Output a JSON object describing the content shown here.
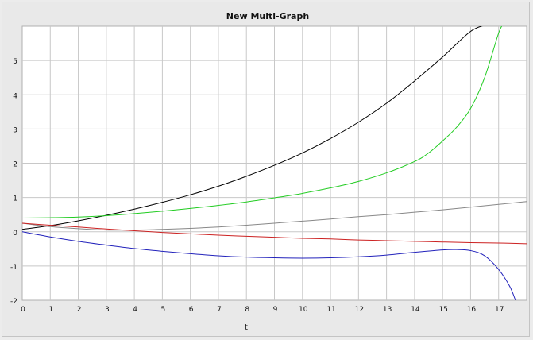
{
  "chart_data": {
    "type": "line",
    "title": "New Multi-Graph",
    "xlabel": "t",
    "ylabel": "",
    "xlim": [
      0,
      18
    ],
    "ylim": [
      -2,
      6
    ],
    "xticks": [
      "0",
      "1",
      "2",
      "3",
      "4",
      "5",
      "6",
      "7",
      "8",
      "9",
      "10",
      "11",
      "12",
      "13",
      "14",
      "15",
      "16",
      "17"
    ],
    "yticks": [
      "-2",
      "-1",
      "0",
      "1",
      "2",
      "3",
      "4",
      "5"
    ],
    "grid": true,
    "legend": "none",
    "colors": {
      "plot_bg": "#ffffff",
      "grid": "#c8c8c8",
      "panel_bg": "#e9e9e9"
    },
    "series": [
      {
        "color": "#000000",
        "x": [
          0,
          1,
          2,
          3,
          4,
          5,
          6,
          7,
          8,
          9,
          10,
          11,
          12,
          13,
          14,
          15,
          16,
          16.6
        ],
        "y": [
          0.07,
          0.18,
          0.32,
          0.48,
          0.66,
          0.86,
          1.08,
          1.33,
          1.62,
          1.94,
          2.3,
          2.72,
          3.2,
          3.75,
          4.4,
          5.1,
          5.85,
          6.05
        ]
      },
      {
        "color": "#22cc22",
        "x": [
          0,
          1,
          2,
          3,
          4,
          5,
          6,
          7,
          8,
          9,
          10,
          11,
          12,
          13,
          14,
          14.5,
          15,
          15.5,
          16,
          16.5,
          17,
          17.2
        ],
        "y": [
          0.4,
          0.41,
          0.43,
          0.47,
          0.53,
          0.6,
          0.68,
          0.77,
          0.87,
          0.99,
          1.12,
          1.28,
          1.47,
          1.72,
          2.05,
          2.3,
          2.65,
          3.05,
          3.6,
          4.5,
          5.8,
          6.1
        ]
      },
      {
        "color": "#888888",
        "x": [
          0,
          1,
          2,
          3,
          4,
          5,
          6,
          7,
          8,
          9,
          10,
          11,
          12,
          13,
          14,
          15,
          16,
          17,
          18
        ],
        "y": [
          0.25,
          0.15,
          0.09,
          0.05,
          0.05,
          0.07,
          0.1,
          0.14,
          0.19,
          0.25,
          0.31,
          0.37,
          0.44,
          0.5,
          0.57,
          0.64,
          0.72,
          0.8,
          0.88
        ]
      },
      {
        "color": "#cc2222",
        "x": [
          0,
          1,
          2,
          3,
          4,
          5,
          6,
          7,
          8,
          9,
          10,
          11,
          12,
          13,
          14,
          15,
          16,
          17,
          18
        ],
        "y": [
          0.25,
          0.19,
          0.14,
          0.08,
          0.03,
          -0.02,
          -0.06,
          -0.1,
          -0.13,
          -0.16,
          -0.19,
          -0.21,
          -0.24,
          -0.26,
          -0.28,
          -0.3,
          -0.32,
          -0.33,
          -0.35
        ]
      },
      {
        "color": "#2222bb",
        "x": [
          0,
          1,
          2,
          3,
          4,
          5,
          6,
          7,
          8,
          9,
          10,
          11,
          12,
          13,
          14,
          15,
          15.5,
          16,
          16.5,
          17,
          17.4,
          17.6
        ],
        "y": [
          0.0,
          -0.15,
          -0.28,
          -0.39,
          -0.49,
          -0.57,
          -0.64,
          -0.7,
          -0.74,
          -0.76,
          -0.77,
          -0.76,
          -0.73,
          -0.68,
          -0.6,
          -0.53,
          -0.52,
          -0.55,
          -0.7,
          -1.1,
          -1.6,
          -2.0
        ]
      }
    ]
  }
}
